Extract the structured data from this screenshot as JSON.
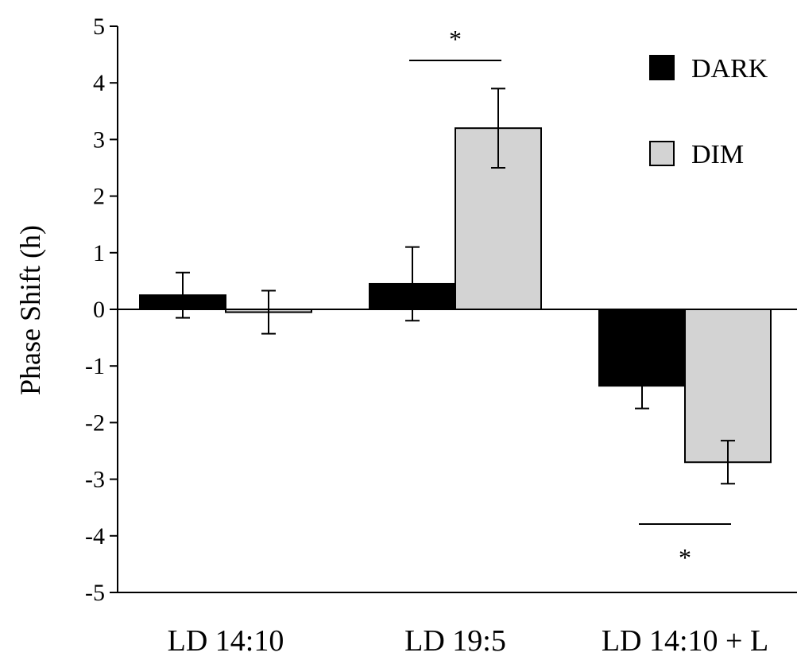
{
  "chart_data": {
    "type": "bar",
    "title": "",
    "xlabel": "",
    "ylabel": "Phase Shift (h)",
    "ylim": [
      -5,
      5
    ],
    "yticks": [
      5,
      4,
      3,
      2,
      1,
      0,
      -1,
      -2,
      -3,
      -4,
      -5
    ],
    "ytick_labels": [
      "5",
      "4",
      "3",
      "2",
      "1",
      "0",
      "-1",
      "-2",
      "-3",
      "-4",
      "-5"
    ],
    "categories": [
      "LD 14:10",
      "LD 19:5",
      "LD 14:10 + L"
    ],
    "series": [
      {
        "name": "DARK",
        "color": "#000000",
        "values": [
          0.25,
          0.45,
          -1.35
        ],
        "errors": [
          0.4,
          0.65,
          0.4
        ]
      },
      {
        "name": "DIM",
        "color": "#d3d3d3",
        "values": [
          -0.05,
          3.2,
          -2.7
        ],
        "errors": [
          0.38,
          0.7,
          0.38
        ]
      }
    ],
    "legend": {
      "position": "top-right"
    },
    "grid": false,
    "annotations": [
      {
        "text": "*",
        "category": "LD 19:5",
        "placement": "above"
      },
      {
        "text": "*",
        "category": "LD 14:10 + L",
        "placement": "below"
      }
    ]
  }
}
